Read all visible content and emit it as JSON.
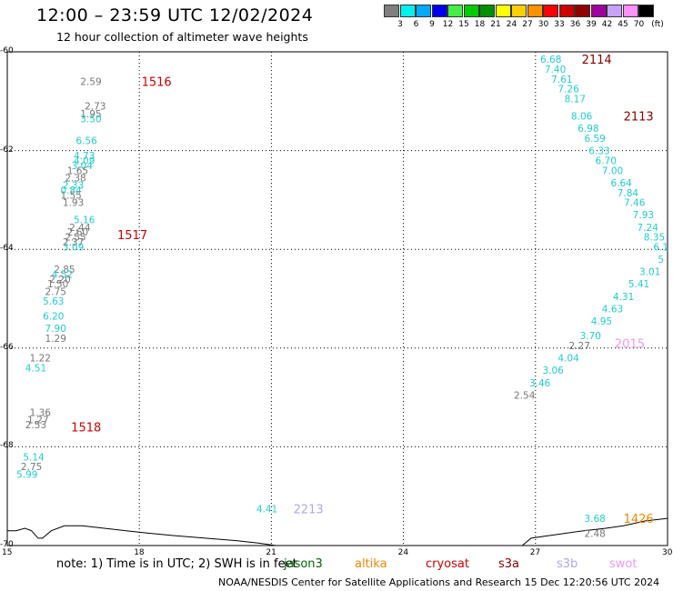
{
  "header": {
    "title": "12:00 – 23:59 UTC 12/02/2024",
    "subtitle": "12 hour collection of altimeter wave heights"
  },
  "colorbar": {
    "colors": [
      "#7f7f7f",
      "#00f0f0",
      "#00aaff",
      "#0000ee",
      "#44ee44",
      "#00cc00",
      "#009000",
      "#ffff00",
      "#ffd000",
      "#ff9000",
      "#ff0000",
      "#cc0000",
      "#900000",
      "#a000a0",
      "#c8a0ff",
      "#ff90ff",
      "#000000"
    ],
    "ticks": [
      "3",
      "6",
      "9",
      "12",
      "15",
      "18",
      "21",
      "24",
      "27",
      "30",
      "33",
      "36",
      "39",
      "42",
      "45",
      "70"
    ],
    "unit": "(ft)"
  },
  "axes": {
    "y_ticks": [
      "-60",
      "-62",
      "-64",
      "-66",
      "-68",
      "-70"
    ],
    "x_ticks": [
      "15",
      "18",
      "21",
      "24",
      "27",
      "30"
    ]
  },
  "map": {
    "lon_range": [
      15,
      30
    ],
    "lat_range": [
      -70,
      -60
    ],
    "grid": "dotted"
  },
  "data_colors": {
    "gray": "#777777",
    "cyan": "#22cccc",
    "jason3": "#006600",
    "altika": "#ee8800",
    "cryosat": "#cc0000",
    "s3a": "#880000",
    "s3b": "#aaaaee",
    "swot": "#ee99ee"
  },
  "observations": [
    {
      "lon": 16.9,
      "lat": -60.6,
      "v": "2.59",
      "c": "gray"
    },
    {
      "lon": 17.0,
      "lat": -61.1,
      "v": "2.73",
      "c": "gray"
    },
    {
      "lon": 16.9,
      "lat": -61.25,
      "v": "1.95",
      "c": "gray"
    },
    {
      "lon": 16.9,
      "lat": -61.35,
      "v": "3.50",
      "c": "cyan"
    },
    {
      "lon": 16.8,
      "lat": -61.8,
      "v": "6.56",
      "c": "cyan"
    },
    {
      "lon": 16.75,
      "lat": -62.1,
      "v": "4.73",
      "c": "cyan"
    },
    {
      "lon": 16.75,
      "lat": -62.2,
      "v": "4.09",
      "c": "cyan"
    },
    {
      "lon": 16.7,
      "lat": -62.3,
      "v": "3.04",
      "c": "cyan"
    },
    {
      "lon": 16.6,
      "lat": -62.4,
      "v": "1.65",
      "c": "gray"
    },
    {
      "lon": 16.55,
      "lat": -62.55,
      "v": "2.38",
      "c": "gray"
    },
    {
      "lon": 16.5,
      "lat": -62.7,
      "v": "2.33",
      "c": "cyan"
    },
    {
      "lon": 16.45,
      "lat": -62.8,
      "v": "0.84",
      "c": "cyan"
    },
    {
      "lon": 16.45,
      "lat": -62.9,
      "v": "1.55",
      "c": "gray"
    },
    {
      "lon": 16.5,
      "lat": -63.05,
      "v": "1.93",
      "c": "gray"
    },
    {
      "lon": 16.75,
      "lat": -63.4,
      "v": "5.16",
      "c": "cyan"
    },
    {
      "lon": 16.65,
      "lat": -63.55,
      "v": "2.44",
      "c": "gray"
    },
    {
      "lon": 16.6,
      "lat": -63.65,
      "v": "2.60",
      "c": "gray"
    },
    {
      "lon": 16.55,
      "lat": -63.75,
      "v": "2.55",
      "c": "gray"
    },
    {
      "lon": 16.5,
      "lat": -63.85,
      "v": "2.37",
      "c": "gray"
    },
    {
      "lon": 16.5,
      "lat": -63.95,
      "v": "3.09",
      "c": "cyan"
    },
    {
      "lon": 16.3,
      "lat": -64.4,
      "v": "2.85",
      "c": "gray"
    },
    {
      "lon": 16.25,
      "lat": -64.5,
      "v": "4.52",
      "c": "cyan"
    },
    {
      "lon": 16.2,
      "lat": -64.6,
      "v": "2.20",
      "c": "gray"
    },
    {
      "lon": 16.15,
      "lat": -64.7,
      "v": "1.50",
      "c": "gray"
    },
    {
      "lon": 16.1,
      "lat": -64.85,
      "v": "2.75",
      "c": "gray"
    },
    {
      "lon": 16.05,
      "lat": -65.05,
      "v": "5.63",
      "c": "cyan"
    },
    {
      "lon": 16.05,
      "lat": -65.35,
      "v": "6.20",
      "c": "cyan"
    },
    {
      "lon": 16.1,
      "lat": -65.6,
      "v": "7.90",
      "c": "cyan"
    },
    {
      "lon": 16.1,
      "lat": -65.8,
      "v": "1.29",
      "c": "gray"
    },
    {
      "lon": 15.75,
      "lat": -66.2,
      "v": "1.22",
      "c": "gray"
    },
    {
      "lon": 15.65,
      "lat": -66.4,
      "v": "4.51",
      "c": "cyan"
    },
    {
      "lon": 15.75,
      "lat": -67.3,
      "v": "1.36",
      "c": "gray"
    },
    {
      "lon": 15.7,
      "lat": -67.45,
      "v": "1.27",
      "c": "gray"
    },
    {
      "lon": 15.65,
      "lat": -67.55,
      "v": "2.53",
      "c": "gray"
    },
    {
      "lon": 15.6,
      "lat": -68.2,
      "v": "5.14",
      "c": "cyan"
    },
    {
      "lon": 15.55,
      "lat": -68.4,
      "v": "2.75",
      "c": "gray"
    },
    {
      "lon": 15.45,
      "lat": -68.55,
      "v": "5.99",
      "c": "cyan"
    },
    {
      "lon": 27.35,
      "lat": -60.15,
      "v": "6.68",
      "c": "cyan"
    },
    {
      "lon": 27.45,
      "lat": -60.35,
      "v": "7.40",
      "c": "cyan"
    },
    {
      "lon": 27.6,
      "lat": -60.55,
      "v": "7.61",
      "c": "cyan"
    },
    {
      "lon": 27.75,
      "lat": -60.75,
      "v": "7.26",
      "c": "cyan"
    },
    {
      "lon": 27.9,
      "lat": -60.95,
      "v": "8.17",
      "c": "cyan"
    },
    {
      "lon": 28.05,
      "lat": -61.3,
      "v": "8.06",
      "c": "cyan"
    },
    {
      "lon": 28.2,
      "lat": -61.55,
      "v": "6.98",
      "c": "cyan"
    },
    {
      "lon": 28.35,
      "lat": -61.75,
      "v": "6.59",
      "c": "cyan"
    },
    {
      "lon": 28.45,
      "lat": -62.0,
      "v": "6.33",
      "c": "cyan"
    },
    {
      "lon": 28.6,
      "lat": -62.2,
      "v": "6.70",
      "c": "cyan"
    },
    {
      "lon": 28.75,
      "lat": -62.4,
      "v": "7.00",
      "c": "cyan"
    },
    {
      "lon": 28.95,
      "lat": -62.65,
      "v": "6.64",
      "c": "cyan"
    },
    {
      "lon": 29.1,
      "lat": -62.85,
      "v": "7.84",
      "c": "cyan"
    },
    {
      "lon": 29.25,
      "lat": -63.05,
      "v": "7.46",
      "c": "cyan"
    },
    {
      "lon": 29.45,
      "lat": -63.3,
      "v": "7.93",
      "c": "cyan"
    },
    {
      "lon": 29.55,
      "lat": -63.55,
      "v": "7.24",
      "c": "cyan"
    },
    {
      "lon": 29.7,
      "lat": -63.75,
      "v": "8.35",
      "c": "cyan"
    },
    {
      "lon": 29.85,
      "lat": -63.95,
      "v": "6.1",
      "c": "cyan"
    },
    {
      "lon": 29.85,
      "lat": -64.2,
      "v": "5",
      "c": "cyan"
    },
    {
      "lon": 29.6,
      "lat": -64.45,
      "v": "3.01",
      "c": "cyan"
    },
    {
      "lon": 29.35,
      "lat": -64.7,
      "v": "5.41",
      "c": "cyan"
    },
    {
      "lon": 29.0,
      "lat": -64.95,
      "v": "4.31",
      "c": "cyan"
    },
    {
      "lon": 28.75,
      "lat": -65.2,
      "v": "4.63",
      "c": "cyan"
    },
    {
      "lon": 28.5,
      "lat": -65.45,
      "v": "4.95",
      "c": "cyan"
    },
    {
      "lon": 28.25,
      "lat": -65.75,
      "v": "3.70",
      "c": "cyan"
    },
    {
      "lon": 28.0,
      "lat": -65.95,
      "v": "2.27",
      "c": "gray"
    },
    {
      "lon": 27.75,
      "lat": -66.2,
      "v": "4.04",
      "c": "cyan"
    },
    {
      "lon": 27.4,
      "lat": -66.45,
      "v": "3.06",
      "c": "cyan"
    },
    {
      "lon": 27.1,
      "lat": -66.7,
      "v": "3.46",
      "c": "cyan"
    },
    {
      "lon": 26.75,
      "lat": -66.95,
      "v": "2.54",
      "c": "gray"
    },
    {
      "lon": 20.9,
      "lat": -69.25,
      "v": "4.41",
      "c": "cyan"
    },
    {
      "lon": 28.35,
      "lat": -69.45,
      "v": "3.68",
      "c": "cyan"
    },
    {
      "lon": 28.35,
      "lat": -69.75,
      "v": "2.48",
      "c": "gray"
    }
  ],
  "tracks": [
    {
      "lon": 18.05,
      "lat": -60.6,
      "label": "1516",
      "c": "cryosat"
    },
    {
      "lon": 17.5,
      "lat": -63.7,
      "label": "1517",
      "c": "cryosat"
    },
    {
      "lon": 16.45,
      "lat": -67.6,
      "label": "1518",
      "c": "cryosat"
    },
    {
      "lon": 28.05,
      "lat": -60.15,
      "label": "2114",
      "c": "s3a"
    },
    {
      "lon": 29.0,
      "lat": -61.3,
      "label": "2113",
      "c": "s3a"
    },
    {
      "lon": 28.8,
      "lat": -65.9,
      "label": "2015",
      "c": "swot"
    },
    {
      "lon": 21.5,
      "lat": -69.25,
      "label": "2213",
      "c": "s3b"
    },
    {
      "lon": 29.0,
      "lat": -69.45,
      "label": "1426",
      "c": "altika"
    }
  ],
  "coastline": [
    [
      15.0,
      -69.7
    ],
    [
      15.2,
      -69.7
    ],
    [
      15.4,
      -69.65
    ],
    [
      15.55,
      -69.7
    ],
    [
      15.7,
      -69.85
    ],
    [
      15.8,
      -69.85
    ],
    [
      16.0,
      -69.7
    ],
    [
      16.3,
      -69.6
    ],
    [
      16.7,
      -69.6
    ],
    [
      17.2,
      -69.65
    ],
    [
      17.7,
      -69.7
    ],
    [
      18.2,
      -69.75
    ],
    [
      18.8,
      -69.8
    ],
    [
      19.5,
      -69.85
    ],
    [
      20.2,
      -69.9
    ],
    [
      20.7,
      -69.95
    ],
    [
      21.1,
      -70.0
    ],
    [
      26.7,
      -70.0
    ],
    [
      26.9,
      -69.85
    ],
    [
      27.3,
      -69.8
    ],
    [
      27.7,
      -69.75
    ],
    [
      28.1,
      -69.7
    ],
    [
      28.6,
      -69.65
    ],
    [
      29.0,
      -69.6
    ],
    [
      29.5,
      -69.5
    ],
    [
      30.0,
      -69.45
    ]
  ],
  "legend": {
    "note": "note:  1) Time is in UTC;  2) SWH is in feet",
    "items": [
      {
        "name": "jason3",
        "c": "jason3"
      },
      {
        "name": "altika",
        "c": "altika"
      },
      {
        "name": "cryosat",
        "c": "cryosat"
      },
      {
        "name": "s3a",
        "c": "s3a"
      },
      {
        "name": "s3b",
        "c": "s3b"
      },
      {
        "name": "swot",
        "c": "swot"
      }
    ]
  },
  "footer": "NOAA/NESDIS Center for Satellite Applications and Research    15 Dec 12:20:56 UTC 2024"
}
